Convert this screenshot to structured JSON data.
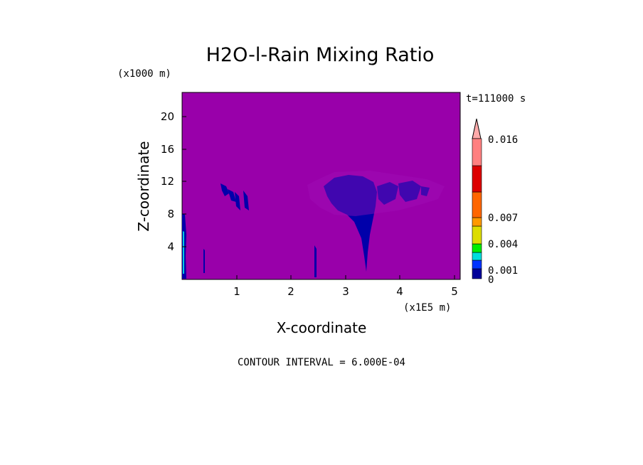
{
  "chart_data": {
    "type": "heatmap",
    "title": "H2O-l-Rain Mixing Ratio",
    "time_label": "t=111000 s",
    "xlabel": "X-coordinate",
    "ylabel": "Z-coordinate",
    "x_unit": "(x1E5 m)",
    "y_unit": "(x1000 m)",
    "x_ticks": [
      "1",
      "2",
      "3",
      "4",
      "5"
    ],
    "y_ticks": [
      "4",
      "8",
      "12",
      "16",
      "20"
    ],
    "xlim": [
      0,
      5.1
    ],
    "ylim": [
      0,
      23
    ],
    "background_color": "#9900aa",
    "contour_interval_text": "CONTOUR INTERVAL = 6.000E-04",
    "colorbar": {
      "colors": [
        "#000099",
        "#0033ff",
        "#00dddd",
        "#00ee00",
        "#dddd00",
        "#ff9900",
        "#ff6600",
        "#dd0000",
        "#ff8080"
      ],
      "labels": [
        "0",
        "0.001",
        "0.004",
        "0.007",
        "0.016"
      ],
      "extend_color": "#ffaaaa"
    }
  }
}
